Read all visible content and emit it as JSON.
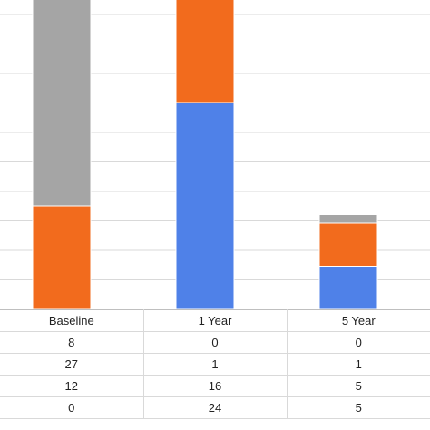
{
  "chart_data": {
    "type": "bar",
    "stacked": true,
    "categories": [
      "Baseline",
      "1 Year",
      "5 Year"
    ],
    "series": [
      {
        "values": [
          8,
          0,
          0
        ],
        "color": "#FFC000"
      },
      {
        "values": [
          27,
          1,
          1
        ],
        "color": "#A5A5A5"
      },
      {
        "values": [
          12,
          16,
          5
        ],
        "color": "#F26B1D"
      },
      {
        "values": [
          0,
          24,
          5
        ],
        "color": "#4F81E8"
      }
    ],
    "colors": {
      "gridline": "#d9d9d9",
      "bar_border": "#ffffff"
    },
    "grid": true,
    "title": "",
    "xlabel": "",
    "ylabel": ""
  }
}
